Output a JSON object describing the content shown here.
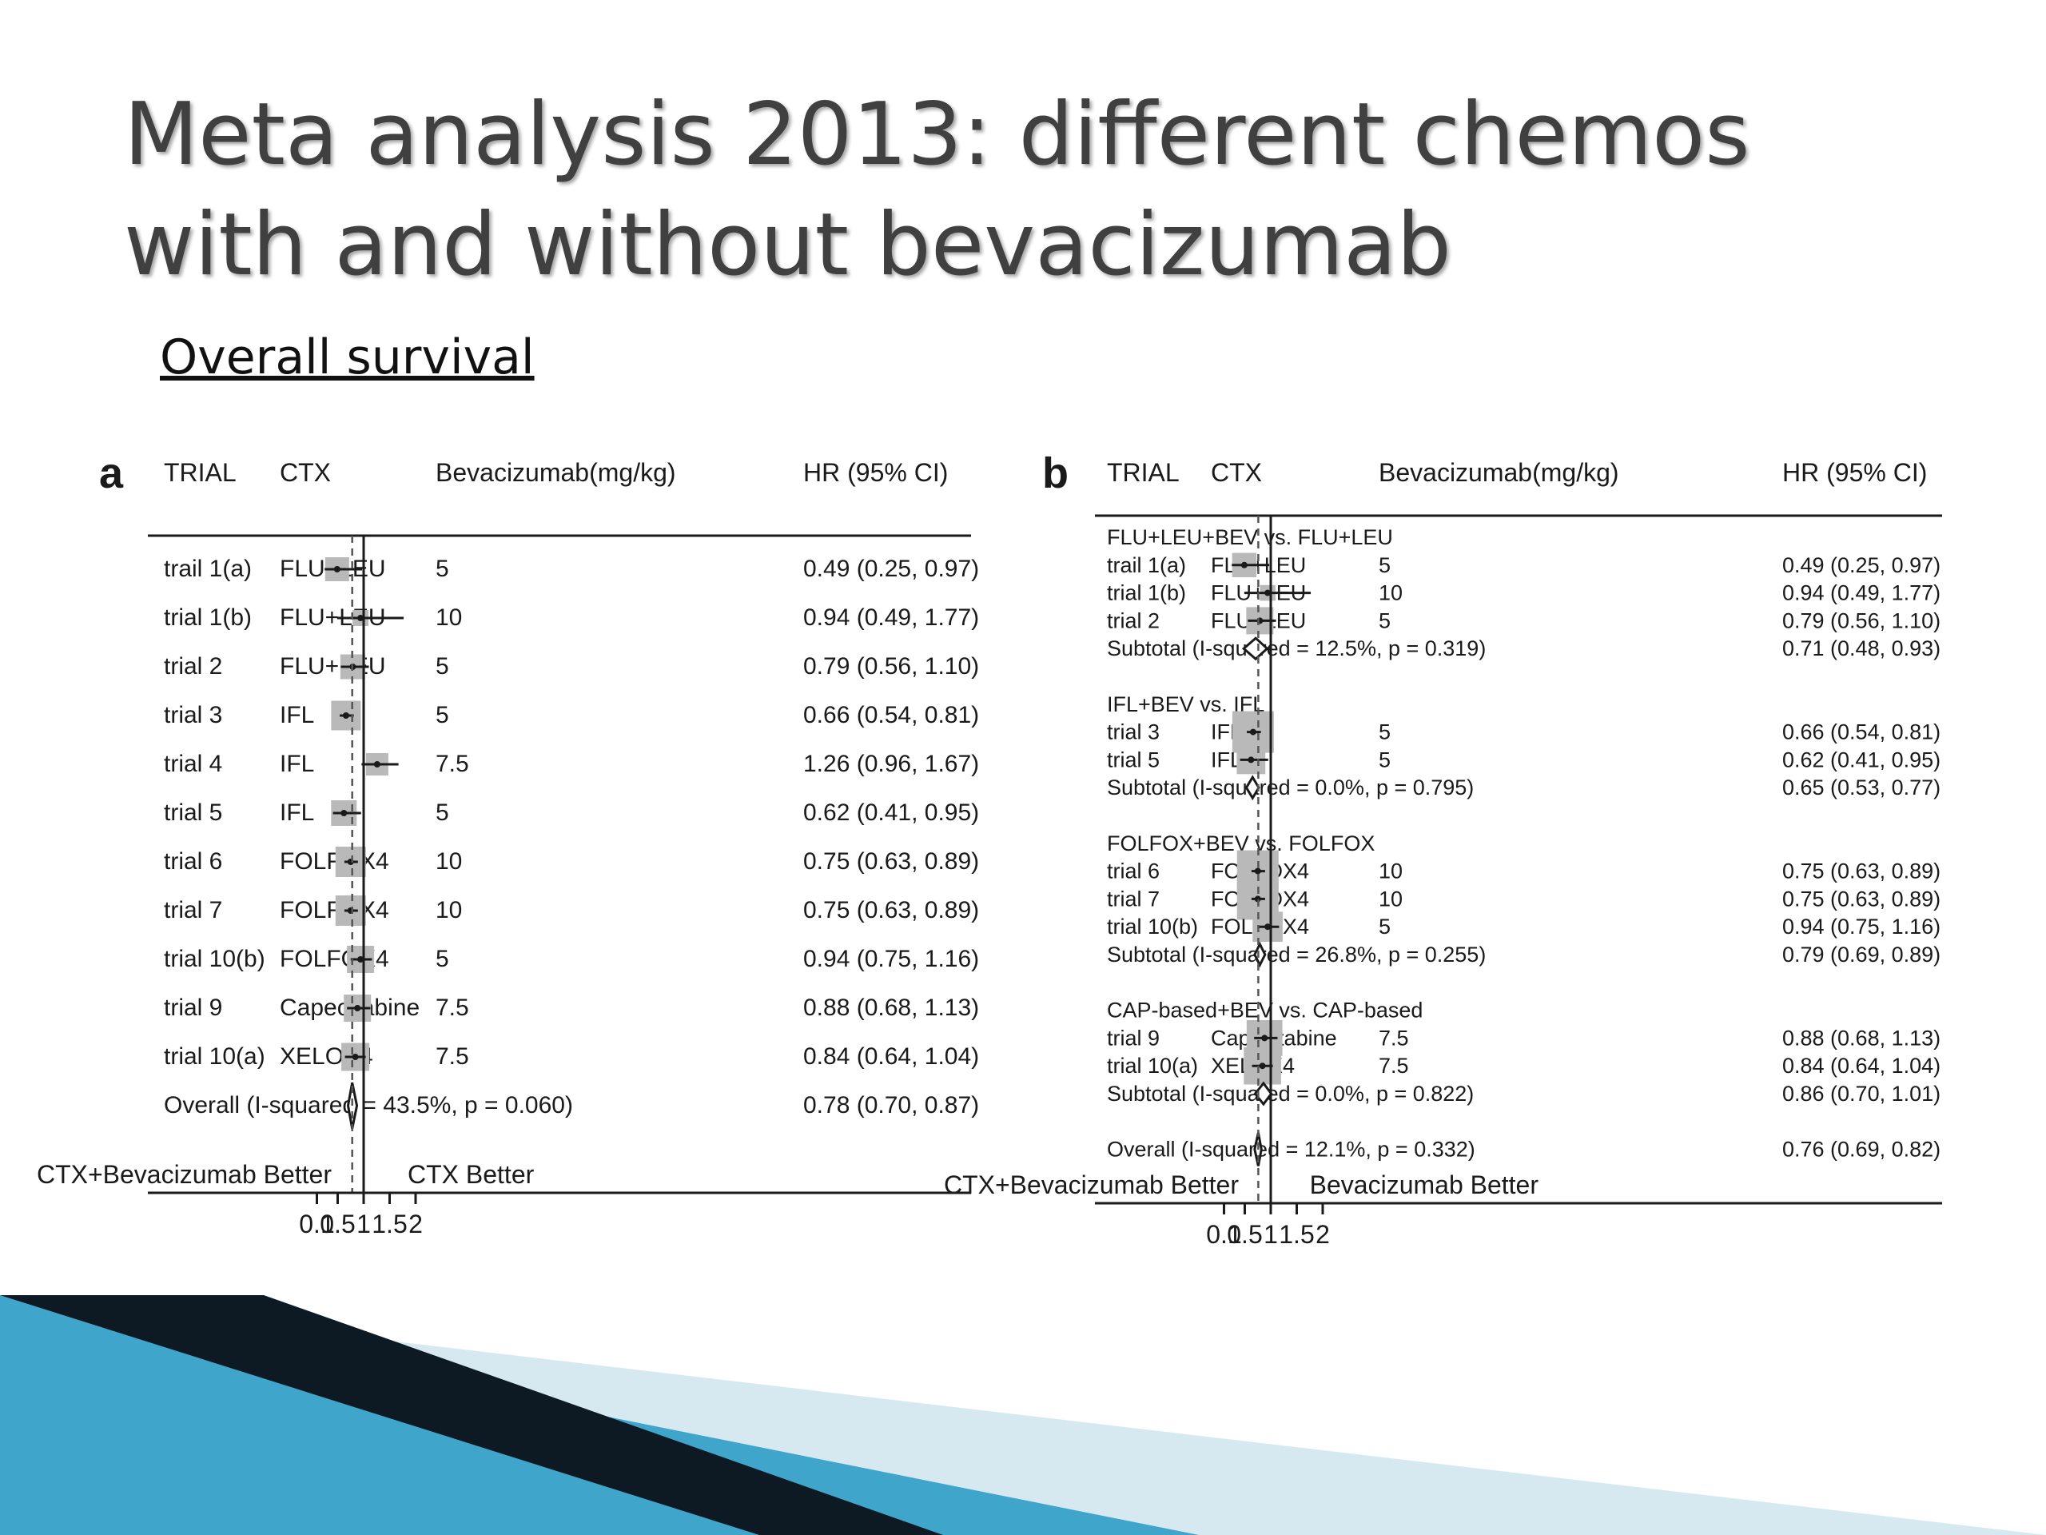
{
  "slide": {
    "title_line1": "Meta analysis 2013: different chemos",
    "title_line2": "with and without bevacizumab",
    "subtitle": "Overall survival"
  },
  "colors": {
    "box": "#b9b9b9",
    "ink": "#1a1a1a",
    "accent_dark": "#0d1a24",
    "accent_blue": "#3a9fc6",
    "accent_light": "#cfe6f0"
  },
  "chart_data": [
    {
      "panel": "a",
      "type": "forest",
      "columns": [
        "TRIAL",
        "CTX",
        "Bevacizumab(mg/kg)",
        "HR (95% CI)"
      ],
      "reference_line": 1,
      "overall_line": 0.78,
      "x_ticks": [
        "0.1",
        "0.5",
        "1",
        "1.5",
        "2"
      ],
      "xlim": [
        0.1,
        2.3
      ],
      "favors_left": "CTX+Bevacizumab Better",
      "favors_right": "CTX Better",
      "rows": [
        {
          "kind": "study",
          "trial": "trail 1(a)",
          "ctx": "FLU+LEU",
          "bev": "5",
          "hr": 0.49,
          "lo": 0.25,
          "hi": 0.97,
          "ci": "0.49 (0.25, 0.97)",
          "w": 0.6
        },
        {
          "kind": "study",
          "trial": "trial 1(b)",
          "ctx": "FLU+LEU",
          "bev": "10",
          "hr": 0.94,
          "lo": 0.49,
          "hi": 1.77,
          "ci": "0.94 (0.49, 1.77)",
          "w": 0.1
        },
        {
          "kind": "study",
          "trial": "trial 2",
          "ctx": "FLU+LEU",
          "bev": "5",
          "hr": 0.79,
          "lo": 0.56,
          "hi": 1.1,
          "ci": "0.79 (0.56, 1.10)",
          "w": 0.65
        },
        {
          "kind": "study",
          "trial": "trial 3",
          "ctx": "IFL",
          "bev": "5",
          "hr": 0.66,
          "lo": 0.54,
          "hi": 0.81,
          "ci": "0.66 (0.54, 0.81)",
          "w": 0.95
        },
        {
          "kind": "study",
          "trial": "trial 4",
          "ctx": "IFL",
          "bev": "7.5",
          "hr": 1.26,
          "lo": 0.96,
          "hi": 1.67,
          "ci": "1.26 (0.96, 1.67)",
          "w": 0.5
        },
        {
          "kind": "study",
          "trial": "trial 5",
          "ctx": "IFL",
          "bev": "5",
          "hr": 0.62,
          "lo": 0.41,
          "hi": 0.95,
          "ci": "0.62 (0.41, 0.95)",
          "w": 0.7
        },
        {
          "kind": "study",
          "trial": "trial 6",
          "ctx": "FOLFOX4",
          "bev": "10",
          "hr": 0.75,
          "lo": 0.63,
          "hi": 0.89,
          "ci": "0.75 (0.63, 0.89)",
          "w": 1.0
        },
        {
          "kind": "study",
          "trial": "trial 7",
          "ctx": "FOLFOX4",
          "bev": "10",
          "hr": 0.75,
          "lo": 0.63,
          "hi": 0.89,
          "ci": "0.75 (0.63, 0.89)",
          "w": 1.0
        },
        {
          "kind": "study",
          "trial": "trial 10(b)",
          "ctx": "FOLFOX4",
          "bev": "5",
          "hr": 0.94,
          "lo": 0.75,
          "hi": 1.16,
          "ci": "0.94 (0.75, 1.16)",
          "w": 0.8
        },
        {
          "kind": "study",
          "trial": "trial 9",
          "ctx": "Capecitabine",
          "bev": "7.5",
          "hr": 0.88,
          "lo": 0.68,
          "hi": 1.13,
          "ci": "0.88 (0.68, 1.13)",
          "w": 0.8
        },
        {
          "kind": "study",
          "trial": "trial 10(a)",
          "ctx": "XELOX4",
          "bev": "7.5",
          "hr": 0.84,
          "lo": 0.64,
          "hi": 1.04,
          "ci": "0.84 (0.64, 1.04)",
          "w": 0.85
        },
        {
          "kind": "overall",
          "label": "Overall  (I-squared = 43.5%, p = 0.060)",
          "hr": 0.78,
          "lo": 0.7,
          "hi": 0.87,
          "ci": "0.78 (0.70, 0.87)"
        }
      ]
    },
    {
      "panel": "b",
      "type": "forest",
      "columns": [
        "TRIAL",
        "CTX",
        "Bevacizumab(mg/kg)",
        "HR (95% CI)"
      ],
      "reference_line": 1,
      "overall_line": 0.76,
      "x_ticks": [
        "0.1",
        "0.5",
        "1",
        "1.5",
        "2"
      ],
      "xlim": [
        0.1,
        2.3
      ],
      "favors_left": "CTX+Bevacizumab Better",
      "favors_right": "Bevacizumab Better",
      "rows": [
        {
          "kind": "header",
          "label": "FLU+LEU+BEV vs. FLU+LEU"
        },
        {
          "kind": "study",
          "trial": "trail 1(a)",
          "ctx": "FLU+LEU",
          "bev": "5",
          "hr": 0.49,
          "lo": 0.25,
          "hi": 0.97,
          "ci": "0.49 (0.25, 0.97)",
          "w": 0.4
        },
        {
          "kind": "study",
          "trial": "trial 1(b)",
          "ctx": "FLU+LEU",
          "bev": "10",
          "hr": 0.94,
          "lo": 0.49,
          "hi": 1.77,
          "ci": "0.94 (0.49, 1.77)",
          "w": 0.1
        },
        {
          "kind": "study",
          "trial": "trial 2",
          "ctx": "FLU+LEU",
          "bev": "5",
          "hr": 0.79,
          "lo": 0.56,
          "hi": 1.1,
          "ci": "0.79 (0.56, 1.10)",
          "w": 0.5
        },
        {
          "kind": "subtotal",
          "label": "Subtotal  (I-squared = 12.5%, p = 0.319)",
          "hr": 0.71,
          "lo": 0.48,
          "hi": 0.93,
          "ci": "0.71 (0.48, 0.93)"
        },
        {
          "kind": "spacer"
        },
        {
          "kind": "header",
          "label": "IFL+BEV vs. IFL"
        },
        {
          "kind": "study",
          "trial": "trial 3",
          "ctx": "IFL",
          "bev": "5",
          "hr": 0.66,
          "lo": 0.54,
          "hi": 0.81,
          "ci": "0.66 (0.54, 0.81)",
          "w": 1.0
        },
        {
          "kind": "study",
          "trial": "trial 5",
          "ctx": "IFL",
          "bev": "5",
          "hr": 0.62,
          "lo": 0.41,
          "hi": 0.95,
          "ci": "0.62 (0.41, 0.95)",
          "w": 0.55
        },
        {
          "kind": "subtotal",
          "label": "Subtotal  (I-squared = 0.0%, p = 0.795)",
          "hr": 0.65,
          "lo": 0.53,
          "hi": 0.77,
          "ci": "0.65 (0.53, 0.77)"
        },
        {
          "kind": "spacer"
        },
        {
          "kind": "header",
          "label": "FOLFOX+BEV vs. FOLFOX"
        },
        {
          "kind": "study",
          "trial": "trial 6",
          "ctx": "FOLFOX4",
          "bev": "10",
          "hr": 0.75,
          "lo": 0.63,
          "hi": 0.89,
          "ci": "0.75 (0.63, 0.89)",
          "w": 1.0
        },
        {
          "kind": "study",
          "trial": "trial 7",
          "ctx": "FOLFOX4",
          "bev": "10",
          "hr": 0.75,
          "lo": 0.63,
          "hi": 0.89,
          "ci": "0.75 (0.63, 0.89)",
          "w": 1.0
        },
        {
          "kind": "study",
          "trial": "trial 10(b)",
          "ctx": "FOLFOX4",
          "bev": "5",
          "hr": 0.94,
          "lo": 0.75,
          "hi": 1.16,
          "ci": "0.94 (0.75, 1.16)",
          "w": 0.6
        },
        {
          "kind": "subtotal",
          "label": "Subtotal  (I-squared = 26.8%, p = 0.255)",
          "hr": 0.79,
          "lo": 0.69,
          "hi": 0.89,
          "ci": "0.79 (0.69, 0.89)"
        },
        {
          "kind": "spacer"
        },
        {
          "kind": "header",
          "label": "CAP-based+BEV vs. CAP-based"
        },
        {
          "kind": "study",
          "trial": "trial 9",
          "ctx": "Capecitabine",
          "bev": "7.5",
          "hr": 0.88,
          "lo": 0.68,
          "hi": 1.13,
          "ci": "0.88 (0.68, 1.13)",
          "w": 0.8
        },
        {
          "kind": "study",
          "trial": "trial 10(a)",
          "ctx": "XELOX4",
          "bev": "7.5",
          "hr": 0.84,
          "lo": 0.64,
          "hi": 1.04,
          "ci": "0.84 (0.64, 1.04)",
          "w": 0.85
        },
        {
          "kind": "subtotal",
          "label": "Subtotal  (I-squared = 0.0%, p = 0.822)",
          "hr": 0.86,
          "lo": 0.7,
          "hi": 1.01,
          "ci": "0.86 (0.70, 1.01)"
        },
        {
          "kind": "spacer"
        },
        {
          "kind": "overall",
          "label": "Overall  (I-squared = 12.1%, p = 0.332)",
          "hr": 0.76,
          "lo": 0.69,
          "hi": 0.82,
          "ci": "0.76 (0.69, 0.82)"
        }
      ]
    }
  ]
}
